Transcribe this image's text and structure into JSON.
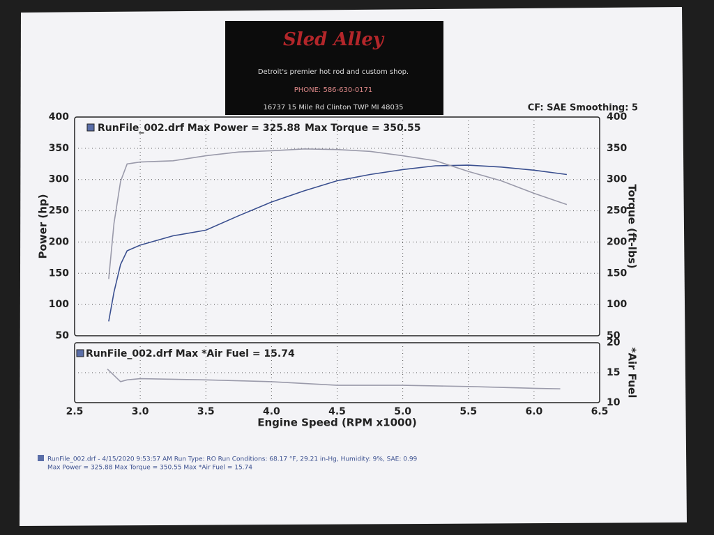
{
  "header": {
    "logo": "Sled Alley",
    "tagline": "Detroit's premier hot rod and custom shop.",
    "phone": "PHONE: 586-630-0171",
    "address": "16737 15 Mile Rd Clinton TWP MI 48035",
    "settings": "CF: SAE  Smoothing: 5"
  },
  "chart_data": [
    {
      "type": "line",
      "title": "RunFile_002.drf Max Power = 325.88",
      "annotation": "Max Torque = 350.55",
      "ylabel": "Power (hp)",
      "y2label": "Torque (ft-lbs)",
      "xlim": [
        2.5,
        6.5
      ],
      "ylim": [
        50,
        400
      ],
      "yticks": [
        50,
        100,
        150,
        200,
        250,
        300,
        350,
        400
      ],
      "y2lim": [
        50,
        400
      ],
      "y2ticks": [
        50,
        100,
        150,
        200,
        250,
        300,
        350,
        400
      ],
      "grid": true,
      "x": [
        2.76,
        2.8,
        2.85,
        2.9,
        3.0,
        3.25,
        3.5,
        3.75,
        4.0,
        4.25,
        4.5,
        4.75,
        5.0,
        5.25,
        5.5,
        5.75,
        6.0,
        6.25
      ],
      "series": [
        {
          "color": "#3a4f8f",
          "values": [
            73,
            120,
            164,
            186,
            195,
            210,
            219,
            242,
            264,
            282,
            298,
            308,
            316,
            322,
            323,
            320,
            315,
            308
          ]
        },
        {
          "color": "#9a9aaa",
          "axis": "y2",
          "values": [
            141,
            230,
            297,
            325,
            328,
            330,
            338,
            344,
            346,
            349,
            348,
            345,
            338,
            330,
            313,
            298,
            278,
            260
          ]
        }
      ]
    },
    {
      "type": "line",
      "title": "RunFile_002.drf Max *Air Fuel = 15.74",
      "xlabel": "Engine Speed (RPM x1000)",
      "y2label": "*Air Fuel",
      "xlim": [
        2.5,
        6.5
      ],
      "xticks": [
        2.5,
        {
          "value": 3,
          "label": "3.0"
        },
        3.5,
        {
          "value": 4,
          "label": "4.0"
        },
        4.5,
        {
          "value": 5,
          "label": "5.0"
        },
        5.5,
        {
          "value": 6,
          "label": "6.0"
        },
        6.5
      ],
      "y2lim": [
        10,
        20
      ],
      "y2ticks": [
        10,
        15,
        20
      ],
      "grid": true,
      "x": [
        2.75,
        2.85,
        2.9,
        3.0,
        3.5,
        4.0,
        4.5,
        5.0,
        5.5,
        6.0,
        6.2
      ],
      "series": [
        {
          "color": "#9a9aaa",
          "axis": "y2",
          "values": [
            15.6,
            13.5,
            13.8,
            14.0,
            13.8,
            13.5,
            12.9,
            12.9,
            12.7,
            12.4,
            12.3
          ]
        }
      ]
    }
  ],
  "footer": {
    "line1": "RunFile_002.drf - 4/15/2020 9:53:57 AM  Run Type: RO  Run Conditions: 68.17 °F, 29.21 in-Hg,  Humidity:  9%, SAE: 0.99",
    "line2": "Max Power = 325.88  Max Torque = 350.55  Max *Air Fuel = 15.74"
  }
}
